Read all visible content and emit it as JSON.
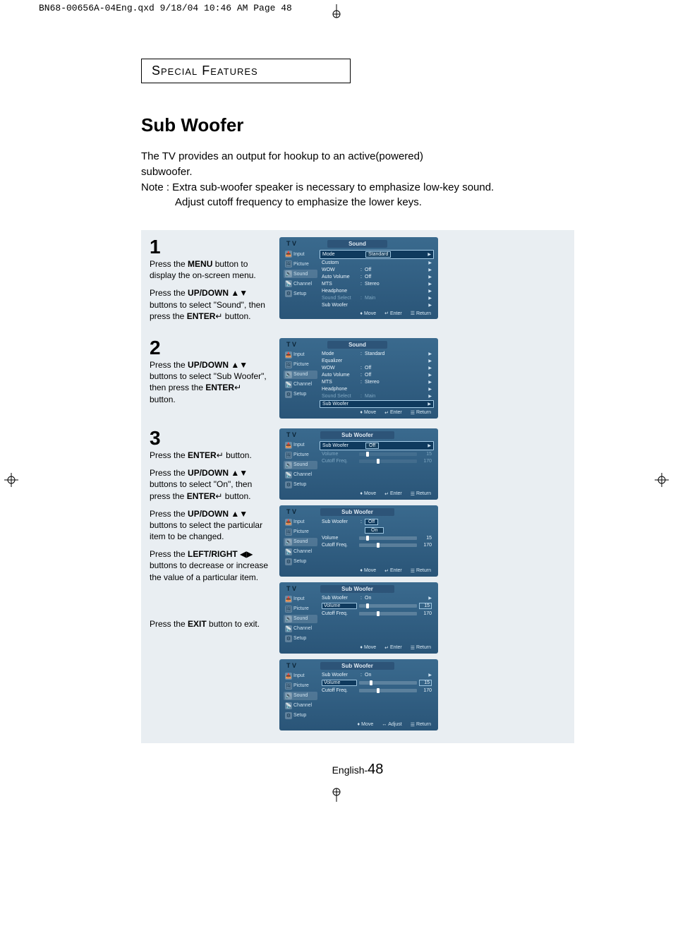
{
  "printHeader": "BN68-00656A-04Eng.qxd  9/18/04 10:46 AM  Page 48",
  "sectionLabel": "Special Features",
  "title": "Sub Woofer",
  "intro": {
    "line1": "The TV provides an output for hookup to an active(powered)",
    "line2": "subwoofer.",
    "note1": "Note : Extra sub-woofer speaker is necessary to emphasize low-key sound.",
    "note2": "Adjust cutoff frequency to emphasize the lower keys."
  },
  "sideItems": [
    {
      "icon": "📥",
      "label": "Input"
    },
    {
      "icon": "🖼",
      "label": "Picture"
    },
    {
      "icon": "🔊",
      "label": "Sound"
    },
    {
      "icon": "📡",
      "label": "Channel"
    },
    {
      "icon": "⚙",
      "label": "Setup"
    }
  ],
  "footers": {
    "move": "Move",
    "enter": "Enter",
    "return": "Return",
    "adjust": "Adjust",
    "moveIcon": "♦",
    "enterIcon": "↵",
    "returnIcon": "☰",
    "adjustIcon": "↔"
  },
  "step1": {
    "num": "1",
    "p1a": "Press the ",
    "p1b": "MENU",
    "p1c": " button to display the on-screen menu.",
    "p2a": "Press the ",
    "p2b": "UP/DOWN",
    "p2arrows": " ▲▼",
    "p2c": " buttons to select \"Sound\", then press the ",
    "p2d": "ENTER",
    "p2enter": "↵",
    "p2e": " button.",
    "screenTitle": "Sound",
    "rows": [
      {
        "label": "Mode",
        "val": "Standard",
        "hi": true,
        "boxed": true,
        "arrow": true
      },
      {
        "label": "Custom",
        "val": "",
        "arrow": true
      },
      {
        "label": "WOW",
        "val": "Off",
        "colon": true,
        "arrow": true
      },
      {
        "label": "Auto Volume",
        "val": "Off",
        "colon": true,
        "arrow": true
      },
      {
        "label": "MTS",
        "val": "Stereo",
        "colon": true,
        "arrow": true
      },
      {
        "label": "Headphone",
        "val": "",
        "arrow": true
      },
      {
        "label": "Sound Select",
        "val": "Main",
        "colon": true,
        "dim": true,
        "arrow": true
      },
      {
        "label": "Sub Woofer",
        "val": "",
        "arrow": true
      }
    ]
  },
  "step2": {
    "num": "2",
    "p1a": "Press the ",
    "p1b": "UP/DOWN",
    "p1arrows": " ▲▼",
    "p1c": " buttons to select \"Sub Woofer\", then press the ",
    "p1d": "ENTER",
    "p1enter": "↵",
    "p1e": "  button.",
    "screenTitle": "Sound",
    "rows": [
      {
        "label": "Mode",
        "val": "Standard",
        "colon": true,
        "arrow": true
      },
      {
        "label": "Equalizer",
        "val": "",
        "arrow": true
      },
      {
        "label": "WOW",
        "val": "Off",
        "colon": true,
        "arrow": true
      },
      {
        "label": "Auto Volume",
        "val": "Off",
        "colon": true,
        "arrow": true
      },
      {
        "label": "MTS",
        "val": "Stereo",
        "colon": true,
        "arrow": true
      },
      {
        "label": "Headphone",
        "val": "",
        "arrow": true
      },
      {
        "label": "Sound Select",
        "val": "Main",
        "colon": true,
        "dim": true,
        "arrow": true
      },
      {
        "label": "Sub Woofer",
        "val": "",
        "hi": true,
        "arrow": true
      }
    ]
  },
  "step3": {
    "num": "3",
    "p1a": "Press the ",
    "p1b": "ENTER",
    "p1enter": "↵",
    "p1c": " button.",
    "p2a": "Press the ",
    "p2b": "UP/DOWN",
    "p2arrows": " ▲▼",
    "p2c": " buttons to select \"On\", then press the ",
    "p2d": "ENTER",
    "p2enter": "↵",
    "p2e": " button.",
    "p3a": "Press the ",
    "p3b": "UP/DOWN",
    "p3arrows": " ▲▼ ",
    "p3c": " buttons to select the particular item to be changed.",
    "p4a": "Press the ",
    "p4b": "LEFT/RIGHT",
    "p4arrows": " ◀▶ ",
    "p4c": "buttons to decrease or increase the value of a particular item.",
    "p5a": "Press the ",
    "p5b": "EXIT",
    "p5c": " button to exit.",
    "screens": {
      "s1": {
        "title": "Sub Woofer",
        "row": {
          "label": "Sub Woofer",
          "val": "Off",
          "hi": true,
          "boxed": true,
          "arrow": true
        },
        "sliders": [
          {
            "label": "Volume",
            "val": "15",
            "knob": 12,
            "dim": true
          },
          {
            "label": "Cutoff Freq.",
            "val": "170",
            "knob": 30,
            "dim": true
          }
        ]
      },
      "s2": {
        "title": "Sub Woofer",
        "row": {
          "label": "Sub Woofer",
          "val": "Off",
          "dropdown": true
        },
        "dropOpt": "On",
        "sliders": [
          {
            "label": "Volume",
            "val": "15",
            "knob": 12
          },
          {
            "label": "Cutoff Freq.",
            "val": "170",
            "knob": 30
          }
        ]
      },
      "s3": {
        "title": "Sub Woofer",
        "row": {
          "label": "Sub Woofer",
          "val": "On",
          "colon": true,
          "arrow": true
        },
        "sliders": [
          {
            "label": "Volume",
            "val": "15",
            "knob": 12,
            "hi": true
          },
          {
            "label": "Cutoff Freq.",
            "val": "170",
            "knob": 30
          }
        ]
      },
      "s4": {
        "title": "Sub Woofer",
        "row": {
          "label": "Sub Woofer",
          "val": "On",
          "colon": true,
          "arrow": true
        },
        "sliders": [
          {
            "label": "Volume",
            "val": "15",
            "knob": 18,
            "hi": true,
            "valHi": true
          },
          {
            "label": "Cutoff Freq.",
            "val": "170",
            "knob": 30
          }
        ],
        "adjustFooter": true
      }
    }
  },
  "pageFooter": {
    "lang": "English-",
    "num": "48"
  },
  "colors": {
    "tvTop": "#3a6a8e",
    "tvBottom": "#2a5578",
    "stepsBg": "#e9eef2",
    "hiBg": "#0f3a5e",
    "hiBorder": "#a7cde8",
    "dimText": "#7fa7c2"
  }
}
